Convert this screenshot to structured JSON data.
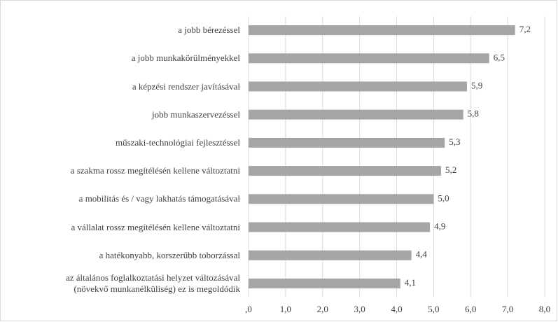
{
  "chart_data": {
    "type": "bar",
    "orientation": "horizontal",
    "categories": [
      "a jobb bérezéssel",
      "a jobb munkakörülményekkel",
      "a képzési rendszer javításával",
      "jobb munkaszervezéssel",
      "műszaki-technológiai fejlesztéssel",
      "a szakma rossz megítélésén kellene változtatni",
      "a mobilitás és / vagy lakhatás támogatásával",
      "a vállalat rossz megítélésén kellene változtatni",
      "a hatékonyabb, korszerűbb toborzással",
      "az általános foglalkoztatási helyzet változásával\n(növekvő munkanélküliség) ez is megoldódik"
    ],
    "values": [
      7.2,
      6.5,
      5.9,
      5.8,
      5.3,
      5.2,
      5.0,
      4.9,
      4.4,
      4.1
    ],
    "value_labels": [
      "7,2",
      "6,5",
      "5,9",
      "5,8",
      "5,3",
      "5,2",
      "5,0",
      "4,9",
      "4,4",
      "4,1"
    ],
    "color": "#a5a5a5",
    "xlim": [
      0,
      8
    ],
    "xticks": [
      {
        "value": 0,
        "label": ",0"
      },
      {
        "value": 1,
        "label": "1,0"
      },
      {
        "value": 2,
        "label": "2,0"
      },
      {
        "value": 3,
        "label": "3,0"
      },
      {
        "value": 4,
        "label": "4,0"
      },
      {
        "value": 5,
        "label": "5,0"
      },
      {
        "value": 6,
        "label": "6,0"
      },
      {
        "value": 7,
        "label": "7,0"
      },
      {
        "value": 8,
        "label": "8,0"
      }
    ],
    "grid": true
  }
}
